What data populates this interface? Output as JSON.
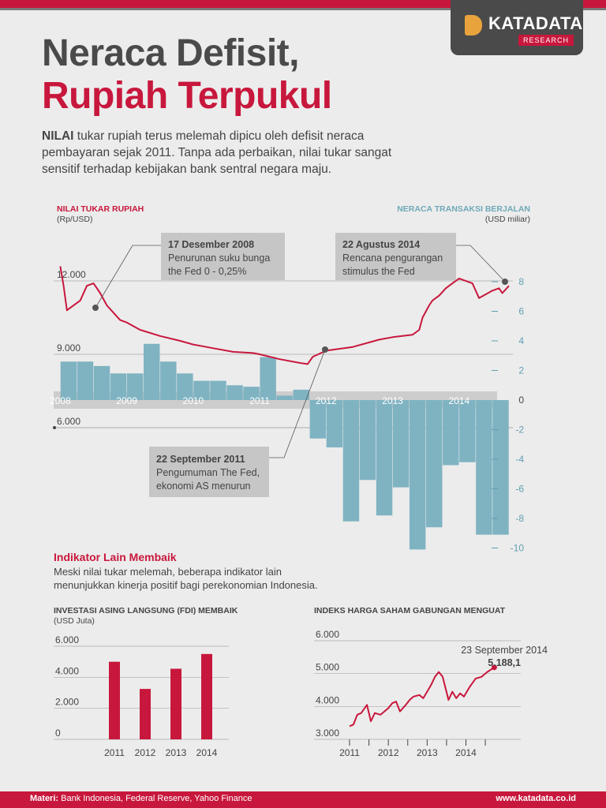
{
  "brand": {
    "name": "KATADATA",
    "tag": "RESEARCH"
  },
  "title": {
    "line1": "Neraca Defisit,",
    "line2": "Rupiah Terpukul"
  },
  "intro": {
    "lead": "NILAI",
    "text": " tukar rupiah terus melemah dipicu oleh defisit neraca pembayaran sejak 2011. Tanpa ada perbaikan, nilai tukar sangat sensitif terhadap kebijakan bank sentral negara maju."
  },
  "colors": {
    "accent": "#c8173c",
    "bars": "#7fb3c2",
    "text": "#444444",
    "axis_right": "#5f9fb0"
  },
  "main_chart": {
    "left_label": "NILAI TUKAR RUPIAH",
    "left_unit": "(Rp/USD)",
    "right_label": "NERACA TRANSAKSI BERJALAN",
    "right_unit": "(USD miliar)",
    "annotations": [
      {
        "date": "17 Desember 2008",
        "line1": "Penurunan suku bunga",
        "line2": "the Fed 0 - 0,25%"
      },
      {
        "date": "22 Agustus 2014",
        "line1": "Rencana pengurangan",
        "line2": "stimulus the Fed"
      },
      {
        "date": "22 September 2011",
        "line1": "Pengumuman The Fed,",
        "line2": "ekonomi AS menurun"
      }
    ]
  },
  "sub_section": {
    "heading": "Indikator Lain Membaik",
    "text": "Meski nilai tukar melemah, beberapa indikator lain menunjukkan kinerja positif bagi perekonomian Indonesia."
  },
  "chart_data": [
    {
      "type": "line",
      "series": [
        {
          "name": "NILAI TUKAR RUPIAH",
          "unit": "Rp/USD"
        }
      ],
      "x": [
        2008.0,
        2008.05,
        2008.1,
        2008.3,
        2008.4,
        2008.5,
        2008.6,
        2008.7,
        2008.8,
        2008.9,
        2009.0,
        2009.2,
        2009.5,
        2009.8,
        2010.0,
        2010.3,
        2010.6,
        2010.9,
        2011.0,
        2011.3,
        2011.6,
        2011.72,
        2011.8,
        2012.0,
        2012.4,
        2012.8,
        2013.0,
        2013.3,
        2013.4,
        2013.45,
        2013.55,
        2013.6,
        2013.7,
        2013.8,
        2013.9,
        2014.0,
        2014.2,
        2014.3,
        2014.5,
        2014.6,
        2014.65,
        2014.75
      ],
      "y": [
        12600,
        11800,
        10800,
        11200,
        11800,
        11900,
        11500,
        11000,
        10700,
        10400,
        10300,
        10000,
        9750,
        9550,
        9400,
        9250,
        9100,
        9050,
        9000,
        8800,
        8650,
        8600,
        8900,
        9150,
        9300,
        9600,
        9700,
        9800,
        10000,
        10500,
        11000,
        11200,
        11400,
        11700,
        11900,
        12100,
        11900,
        11300,
        11600,
        11700,
        11500,
        11800
      ],
      "xlim": [
        2007.9,
        2014.75
      ],
      "ylim": [
        5600,
        13000
      ],
      "y_ticks": [
        "12.000",
        "9.000",
        "6.000"
      ]
    },
    {
      "type": "bar",
      "series": [
        {
          "name": "NERACA TRANSAKSI BERJALAN",
          "unit": "USD miliar"
        }
      ],
      "categories": [
        "2008Q1",
        "2008Q2",
        "2008Q3",
        "2008Q4",
        "2009Q1",
        "2009Q2",
        "2009Q3",
        "2009Q4",
        "2010Q1",
        "2010Q2",
        "2010Q3",
        "2010Q4",
        "2011Q1",
        "2011Q2",
        "2011Q3",
        "2011Q4",
        "2012Q1",
        "2012Q2",
        "2012Q3",
        "2012Q4",
        "2013Q1",
        "2013Q2",
        "2013Q3",
        "2013Q4",
        "2014Q1",
        "2014Q2",
        "2014Q3"
      ],
      "values": [
        2.6,
        2.6,
        2.3,
        1.8,
        1.8,
        3.8,
        2.6,
        1.8,
        1.3,
        1.3,
        1.0,
        0.9,
        2.9,
        0.3,
        0.7,
        -2.6,
        -3.2,
        -8.2,
        -5.4,
        -7.8,
        -5.9,
        -10.1,
        -8.6,
        -4.4,
        -4.2,
        -9.1,
        -9.1
      ],
      "ylim": [
        -10,
        8
      ],
      "y_ticks": [
        "8",
        "6",
        "4",
        "2",
        "0",
        "-2",
        "-4",
        "-6",
        "-8",
        "-10"
      ],
      "x_ticks": [
        "2008",
        "2009",
        "2010",
        "2011",
        "2012",
        "2013",
        "2014"
      ]
    },
    {
      "type": "bar",
      "title": "INVESTASI ASING LANGSUNG (FDI) MEMBAIK",
      "unit": "(USD Juta)",
      "categories": [
        "2011",
        "2012",
        "2013",
        "2014"
      ],
      "values": [
        5000,
        3250,
        4550,
        5500
      ],
      "ylim": [
        0,
        6000
      ],
      "y_ticks": [
        "6.000",
        "4.000",
        "2.000",
        "0"
      ]
    },
    {
      "type": "line",
      "title": "INDEKS HARGA SAHAM GABUNGAN MENGUAT",
      "x": [
        2011.0,
        2011.1,
        2011.2,
        2011.3,
        2011.45,
        2011.55,
        2011.65,
        2011.8,
        2011.95,
        2012.0,
        2012.1,
        2012.2,
        2012.3,
        2012.45,
        2012.55,
        2012.65,
        2012.8,
        2012.9,
        2013.0,
        2013.1,
        2013.2,
        2013.3,
        2013.4,
        2013.55,
        2013.65,
        2013.75,
        2013.85,
        2013.95,
        2014.1,
        2014.25,
        2014.4,
        2014.55,
        2014.73
      ],
      "y": [
        3400,
        3450,
        3750,
        3800,
        4050,
        3550,
        3800,
        3750,
        3900,
        3950,
        4100,
        4150,
        3850,
        4050,
        4200,
        4300,
        4350,
        4250,
        4450,
        4650,
        4900,
        5050,
        4900,
        4200,
        4450,
        4250,
        4400,
        4300,
        4600,
        4850,
        4900,
        5050,
        5188.1
      ],
      "xlim": [
        2010.9,
        2014.9
      ],
      "ylim": [
        3000,
        6000
      ],
      "y_ticks": [
        "6.000",
        "5.000",
        "4.000",
        "3.000"
      ],
      "x_ticks": [
        "2011",
        "2012",
        "2013",
        "2014"
      ],
      "callout": {
        "date": "23 September 2014",
        "value": "5.188,1"
      }
    }
  ],
  "footer": {
    "source_label": "Materi:",
    "source_text": " Bank Indonesia, Federal Reserve, Yahoo Finance",
    "url": "www.katadata.co.id"
  }
}
